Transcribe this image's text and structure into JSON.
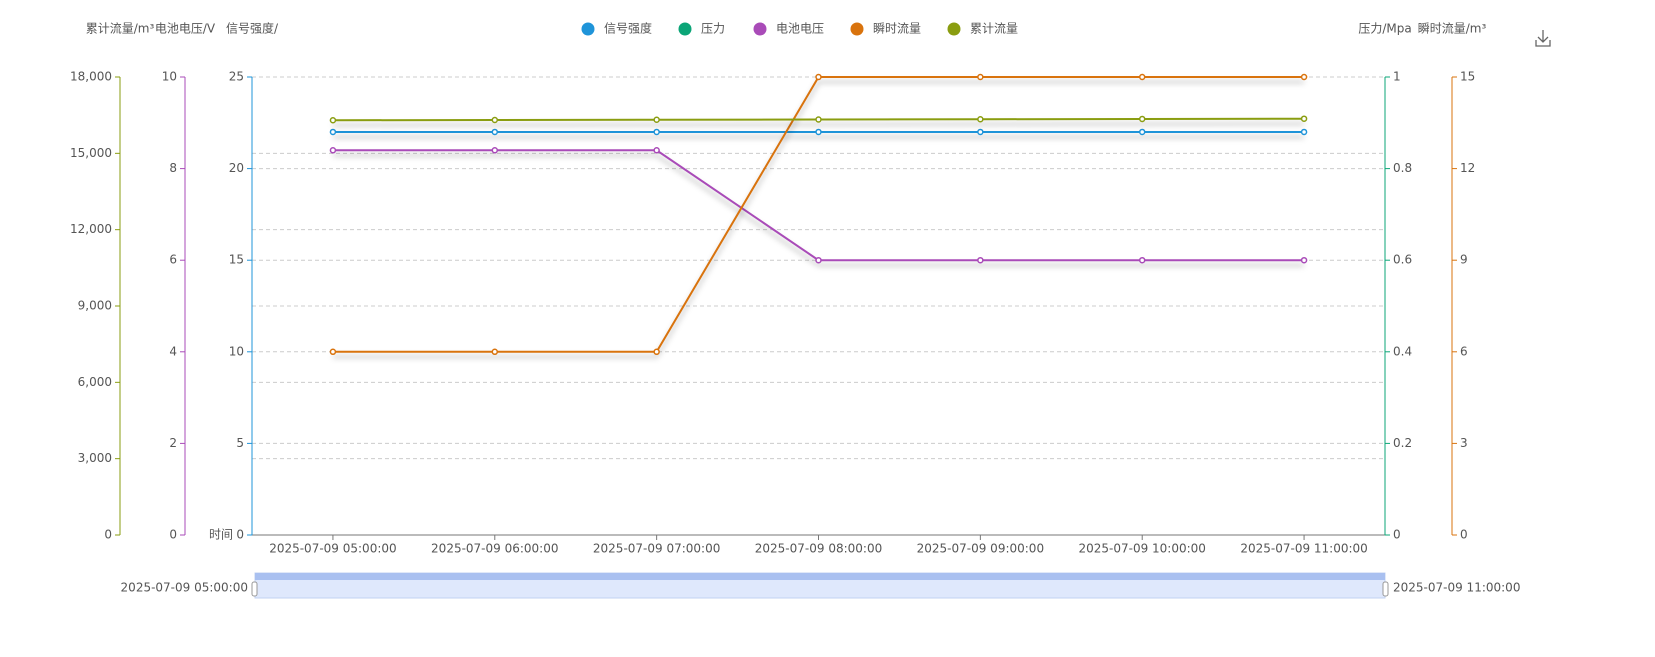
{
  "chart_data": {
    "type": "line",
    "x_label": "时间",
    "categories": [
      "2025-07-09 05:00:00",
      "2025-07-09 06:00:00",
      "2025-07-09 07:00:00",
      "2025-07-09 08:00:00",
      "2025-07-09 09:00:00",
      "2025-07-09 10:00:00",
      "2025-07-09 11:00:00"
    ],
    "axes": [
      {
        "label": "累计流量/m³",
        "color": "#8a9d10",
        "side": "left",
        "lim": [
          0,
          18000
        ],
        "grid": true,
        "ticks": [
          0,
          {
            "value": 3000,
            "label": "3,000"
          },
          {
            "value": 6000,
            "label": "6,000"
          },
          {
            "value": 9000,
            "label": "9,000"
          },
          {
            "value": 12000,
            "label": "12,000"
          },
          {
            "value": 15000,
            "label": "15,000"
          },
          {
            "value": 18000,
            "label": "18,000"
          }
        ]
      },
      {
        "label": "电池电压/V",
        "color": "#a94bb8",
        "side": "left",
        "lim": [
          0,
          10
        ],
        "grid": false,
        "ticks": [
          0,
          2,
          4,
          6,
          8,
          10
        ]
      },
      {
        "label": "信号强度/",
        "color": "#1f94d9",
        "side": "left",
        "lim": [
          0,
          25
        ],
        "grid": true,
        "ticks": [
          0,
          5,
          10,
          15,
          20,
          25
        ]
      },
      {
        "label": "压力/Mpa",
        "color": "#0ba577",
        "side": "right",
        "lim": [
          0,
          1
        ],
        "grid": false,
        "ticks": [
          0,
          0.2,
          0.4,
          0.6,
          0.8,
          1
        ]
      },
      {
        "label": "瞬时流量/m³",
        "color": "#d9730d",
        "side": "right",
        "lim": [
          0,
          15
        ],
        "grid": false,
        "ticks": [
          0,
          3,
          6,
          9,
          12,
          15
        ]
      }
    ],
    "series": [
      {
        "name": "信号强度",
        "color": "#1f94d9",
        "axis": 2,
        "values": [
          22,
          22,
          22,
          22,
          22,
          22,
          22
        ]
      },
      {
        "name": "压力",
        "color": "#0ba577",
        "axis": 3,
        "values": [
          null,
          null,
          null,
          null,
          null,
          null,
          null
        ]
      },
      {
        "name": "电池电压",
        "color": "#a94bb8",
        "axis": 1,
        "values": [
          8.4,
          8.4,
          8.4,
          6,
          6,
          6,
          6
        ]
      },
      {
        "name": "瞬时流量",
        "color": "#d9730d",
        "axis": 4,
        "values": [
          6,
          6,
          6,
          15,
          15,
          15,
          15
        ]
      },
      {
        "name": "累计流量",
        "color": "#8a9d10",
        "axis": 0,
        "values": [
          16300,
          16310,
          16320,
          16330,
          16340,
          16350,
          16360
        ]
      }
    ],
    "zoom": {
      "start": "2025-07-09 05:00:00",
      "end": "2025-07-09 11:00:00"
    }
  }
}
